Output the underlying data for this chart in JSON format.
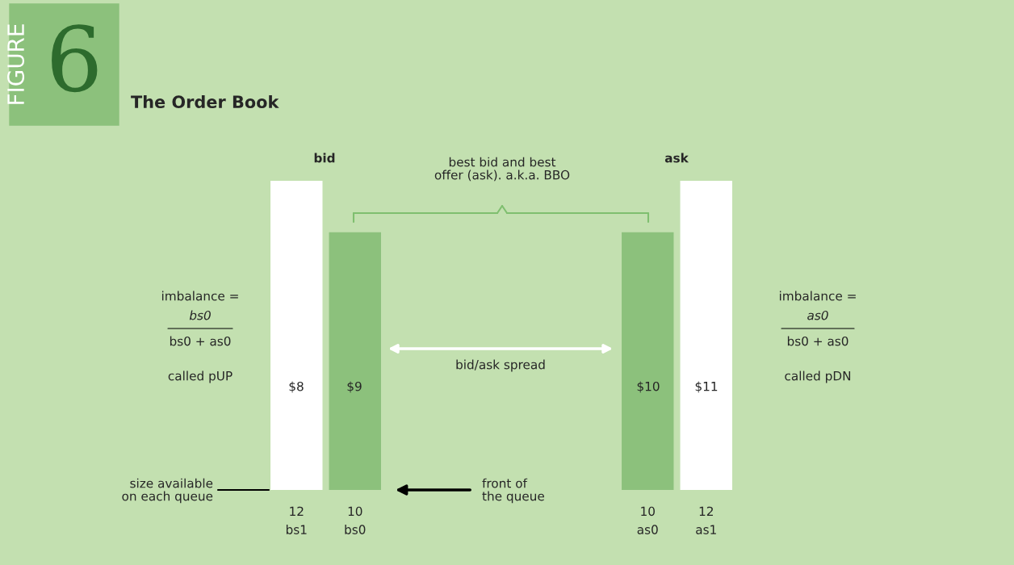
{
  "chart_data": {
    "type": "bar",
    "title": "The Order Book",
    "categories": [
      "bs1",
      "bs0",
      null,
      null,
      null,
      null,
      "as0",
      "as1"
    ],
    "values": [
      12,
      10,
      null,
      null,
      null,
      null,
      10,
      12
    ],
    "colors": [
      "#ffffff",
      "#8cc17c",
      null,
      null,
      null,
      null,
      "#8cc17c",
      "#ffffff"
    ],
    "data_labels": true,
    "tick_labels": "x",
    "grid": false,
    "legend": false,
    "annotations": [
      "FIGURE",
      "6",
      "bid",
      "ask",
      "best bid and best\noffer (ask). a.k.a. BBO",
      "bid/ask spread",
      "imbalance =",
      "bs0",
      "bs0 + as0",
      "called pUP",
      "imbalance =",
      "as0",
      "bs0 + as0",
      "called pDN",
      "size available\non each queue",
      "front of\nthe queue",
      "$8",
      "$9",
      "$10",
      "$11"
    ]
  }
}
